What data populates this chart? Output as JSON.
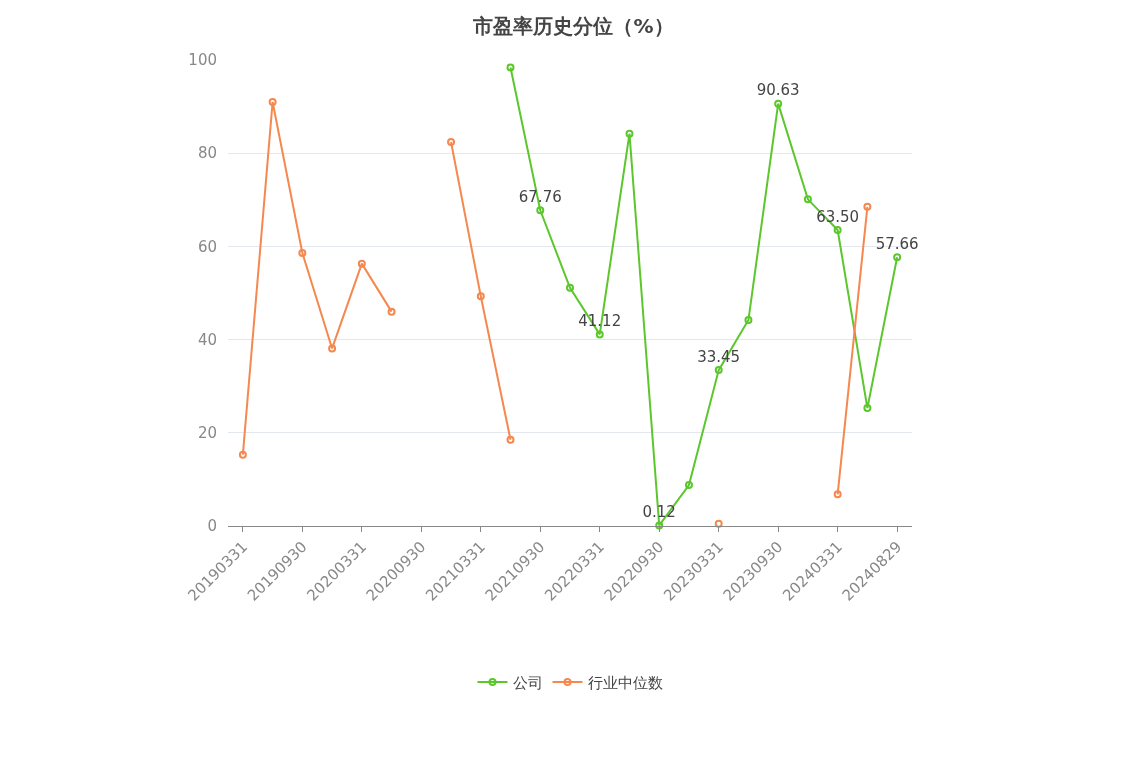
{
  "chart_data": {
    "type": "line",
    "title": "市盈率历史分位（%）",
    "categories": [
      "20190331",
      null,
      "20190930",
      null,
      "20200331",
      null,
      "20200930",
      null,
      "20210331",
      null,
      "20210930",
      null,
      "20220331",
      null,
      "20220930",
      null,
      "20230331",
      null,
      "20230930",
      null,
      "20240331",
      null,
      "20240829"
    ],
    "series": [
      {
        "name": "公司",
        "color": "#5bc72c",
        "values": [
          null,
          null,
          null,
          null,
          null,
          null,
          null,
          null,
          null,
          98.4,
          67.76,
          51.1,
          41.12,
          84.2,
          0.12,
          8.8,
          33.45,
          44.2,
          90.63,
          70.1,
          63.5,
          25.3,
          57.66
        ],
        "value_labels": [
          null,
          null,
          null,
          null,
          null,
          null,
          null,
          null,
          null,
          null,
          "67.76",
          null,
          "41.12",
          null,
          "0.12",
          null,
          "33.45",
          null,
          "90.63",
          null,
          "63.50",
          null,
          "57.66"
        ]
      },
      {
        "name": "行业中位数",
        "color": "#f5884f",
        "values": [
          15.3,
          91.0,
          58.6,
          38.1,
          56.3,
          46.0,
          null,
          82.4,
          49.3,
          18.5,
          null,
          null,
          null,
          null,
          null,
          null,
          0.5,
          null,
          null,
          null,
          6.8,
          68.5,
          null
        ]
      }
    ],
    "ylim": [
      0,
      100
    ],
    "yticks": [
      0,
      20,
      40,
      60,
      80,
      100
    ],
    "grid": "y",
    "legend": "bottom",
    "marker": "circle",
    "line_style": "solid"
  }
}
